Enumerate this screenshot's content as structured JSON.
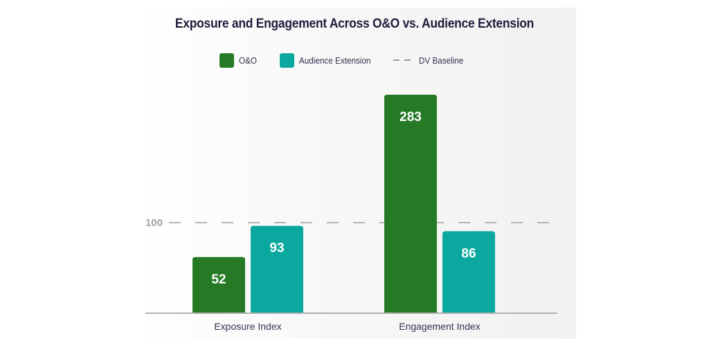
{
  "chart_data": {
    "type": "bar",
    "title": "Exposure and Engagement Across O&O vs. Audience Extension",
    "categories": [
      "Exposure Index",
      "Engagement Index"
    ],
    "series": [
      {
        "name": "O&O",
        "color": "#267a26",
        "values": [
          52,
          283
        ]
      },
      {
        "name": "Audience Extension",
        "color": "#0aa89e",
        "values": [
          93,
          86
        ]
      }
    ],
    "reference_line": {
      "name": "DV Baseline",
      "value": 100,
      "label": "100",
      "style": "dashed",
      "color": "#b4b4b4"
    },
    "xlabel": "",
    "ylabel": "",
    "grid": false,
    "legend_position": "top-center",
    "data_labels": true
  },
  "legend": {
    "items": [
      {
        "label": "O&O",
        "type": "swatch",
        "color": "#267a26"
      },
      {
        "label": "Audience Extension",
        "type": "swatch",
        "color": "#0aa89e"
      },
      {
        "label": "DV Baseline",
        "type": "dashed-line",
        "color": "#9a9a9a"
      }
    ]
  }
}
